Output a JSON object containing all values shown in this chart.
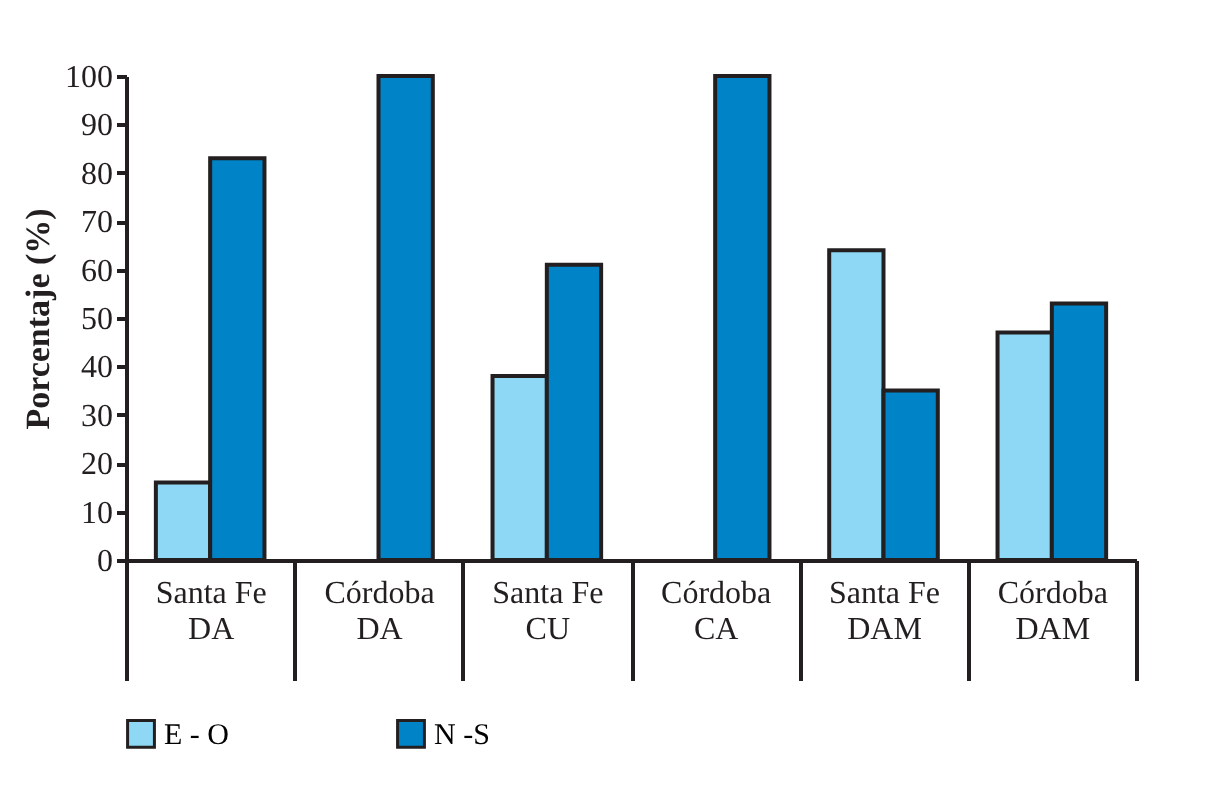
{
  "chart_data": {
    "type": "bar",
    "ylabel": "Porcentaje (%)",
    "categories": [
      "Santa Fe\nDA",
      "Córdoba\nDA",
      "Santa Fe\nCU",
      "Córdoba\nCA",
      "Santa Fe\nDAM",
      "Córdoba\nDAM"
    ],
    "series": [
      {
        "name": "E - O",
        "color": "#8fd8f5",
        "values": [
          16,
          null,
          38,
          null,
          64,
          47
        ]
      },
      {
        "name": "N -S",
        "color": "#0083c7",
        "values": [
          83,
          100,
          61,
          100,
          35,
          53
        ]
      }
    ],
    "ylim": [
      0,
      100
    ],
    "yticks": [
      0,
      10,
      20,
      30,
      40,
      50,
      60,
      70,
      80,
      90,
      100
    ],
    "grid": false,
    "legend": "bottom"
  }
}
